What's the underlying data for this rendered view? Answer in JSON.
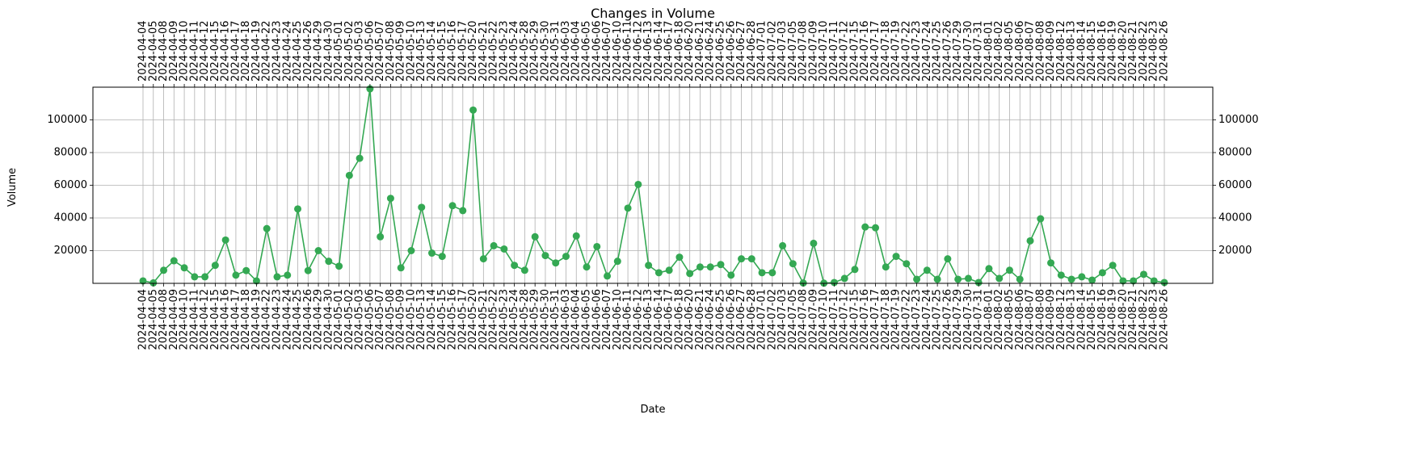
{
  "chart_data": {
    "type": "line",
    "title": "Changes in Volume",
    "xlabel": "Date",
    "ylabel": "Volume",
    "grid": true,
    "ylim": [
      0,
      120000
    ],
    "y_ticks": [
      20000,
      40000,
      60000,
      80000,
      100000
    ],
    "series": [
      {
        "color": "#34a853",
        "marker": "circle",
        "x": [
          "2024-04-04",
          "2024-04-05",
          "2024-04-08",
          "2024-04-09",
          "2024-04-10",
          "2024-04-11",
          "2024-04-12",
          "2024-04-15",
          "2024-04-16",
          "2024-04-17",
          "2024-04-18",
          "2024-04-19",
          "2024-04-22",
          "2024-04-23",
          "2024-04-24",
          "2024-04-25",
          "2024-04-26",
          "2024-04-29",
          "2024-04-30",
          "2024-05-01",
          "2024-05-02",
          "2024-05-03",
          "2024-05-06",
          "2024-05-07",
          "2024-05-08",
          "2024-05-09",
          "2024-05-10",
          "2024-05-13",
          "2024-05-14",
          "2024-05-15",
          "2024-05-16",
          "2024-05-17",
          "2024-05-20",
          "2024-05-21",
          "2024-05-22",
          "2024-05-23",
          "2024-05-24",
          "2024-05-28",
          "2024-05-29",
          "2024-05-30",
          "2024-05-31",
          "2024-06-03",
          "2024-06-04",
          "2024-06-05",
          "2024-06-06",
          "2024-06-07",
          "2024-06-10",
          "2024-06-11",
          "2024-06-12",
          "2024-06-13",
          "2024-06-14",
          "2024-06-17",
          "2024-06-18",
          "2024-06-20",
          "2024-06-21",
          "2024-06-24",
          "2024-06-25",
          "2024-06-26",
          "2024-06-27",
          "2024-06-28",
          "2024-07-01",
          "2024-07-02",
          "2024-07-03",
          "2024-07-05",
          "2024-07-08",
          "2024-07-09",
          "2024-07-10",
          "2024-07-11",
          "2024-07-12",
          "2024-07-15",
          "2024-07-16",
          "2024-07-17",
          "2024-07-18",
          "2024-07-19",
          "2024-07-22",
          "2024-07-23",
          "2024-07-24",
          "2024-07-25",
          "2024-07-26",
          "2024-07-29",
          "2024-07-30",
          "2024-07-31",
          "2024-08-01",
          "2024-08-02",
          "2024-08-05",
          "2024-08-06",
          "2024-08-07",
          "2024-08-08",
          "2024-08-09",
          "2024-08-12",
          "2024-08-13",
          "2024-08-14",
          "2024-08-15",
          "2024-08-16",
          "2024-08-19",
          "2024-08-20",
          "2024-08-21",
          "2024-08-22",
          "2024-08-23",
          "2024-08-26"
        ],
        "values": [
          1500,
          300,
          8000,
          13800,
          9500,
          4000,
          4000,
          11000,
          26500,
          5000,
          7800,
          1500,
          33500,
          4000,
          5000,
          45500,
          7800,
          20000,
          13500,
          10500,
          66000,
          76500,
          119000,
          28500,
          52000,
          9500,
          20000,
          46500,
          18500,
          16500,
          47500,
          44500,
          106000,
          15000,
          23000,
          21000,
          11000,
          8000,
          28500,
          17000,
          12500,
          16500,
          29000,
          10000,
          22500,
          4500,
          13500,
          46000,
          60500,
          11000,
          6500,
          8000,
          16000,
          6000,
          10000,
          10000,
          11500,
          5000,
          15000,
          15000,
          6500,
          6500,
          23000,
          12000,
          200,
          24500,
          100,
          500,
          3000,
          8500,
          34500,
          34000,
          10000,
          16500,
          12000,
          2500,
          8000,
          2500,
          15000,
          2500,
          3000,
          500,
          9000,
          3000,
          8000,
          2500,
          26000,
          39500,
          12500,
          5000,
          2500,
          4000,
          2000,
          6500,
          11000,
          1500,
          1500,
          5500,
          1500,
          500
        ]
      }
    ]
  }
}
